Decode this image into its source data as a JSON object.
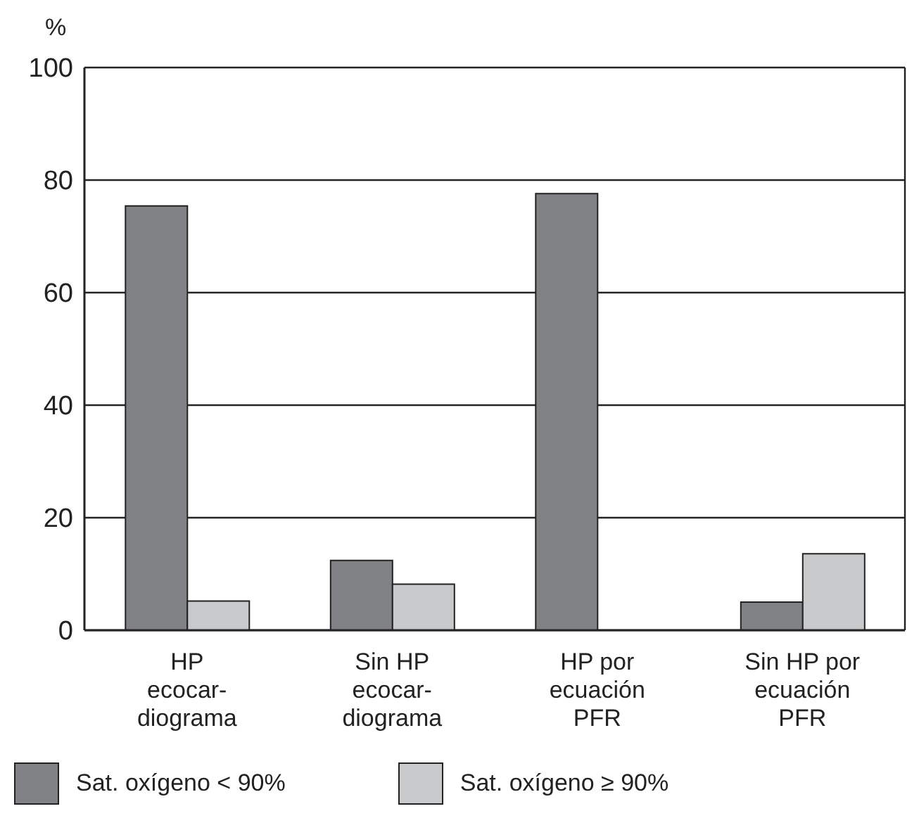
{
  "chart_data": {
    "type": "bar",
    "ylabel": "%",
    "categories": [
      "HP\necocar-\ndiograma",
      "Sin HP\necocar-\ndiograma",
      "HP por\necuación\nPFR",
      "Sin HP por\necuación\nPFR"
    ],
    "series": [
      {
        "name": "Sat. oxígeno < 90%",
        "color": "#808185",
        "values": [
          75.4,
          12.4,
          77.6,
          5
        ]
      },
      {
        "name": "Sat. oxígeno ≥ 90%",
        "color": "#c8c9cb",
        "values": [
          5.2,
          8.2,
          null,
          13.6
        ]
      }
    ],
    "ylim": [
      0,
      100
    ],
    "yticks": [
      0,
      20,
      40,
      60,
      80,
      100
    ],
    "grid": "y",
    "legend": "bottom left"
  }
}
